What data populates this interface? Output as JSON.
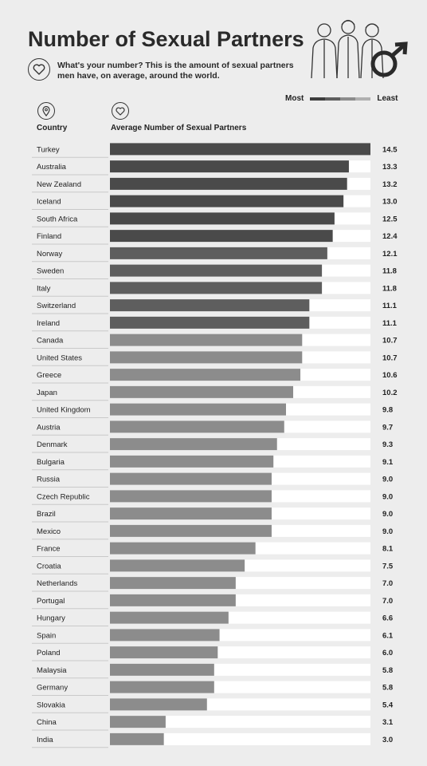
{
  "title": "Number of Sexual Partners",
  "subtitle": "What's your number? This is the amount of sexual partners men have, on average, around the world.",
  "legend": {
    "most_label": "Most",
    "least_label": "Least"
  },
  "columns": {
    "country": "Country",
    "average": "Average Number of Sexual Partners"
  },
  "icons": {
    "header": "heart-icon",
    "country": "location-pin-icon",
    "average": "heart-icon",
    "illustration": "male-symbol-icon"
  },
  "colors": {
    "background": "#ededed",
    "track": "#ffffff",
    "dark": "#4a4a4a",
    "medium": "#5e5e5e",
    "light": "#8c8c8c",
    "text": "#222222"
  },
  "chart_data": {
    "type": "bar",
    "orientation": "horizontal",
    "xlim": [
      0,
      14.5
    ],
    "categories": [
      "Turkey",
      "Australia",
      "New Zealand",
      "Iceland",
      "South Africa",
      "Finland",
      "Norway",
      "Sweden",
      "Italy",
      "Switzerland",
      "Ireland",
      "Canada",
      "United States",
      "Greece",
      "Japan",
      "United Kingdom",
      "Austria",
      "Denmark",
      "Bulgaria",
      "Russia",
      "Czech Republic",
      "Brazil",
      "Mexico",
      "France",
      "Croatia",
      "Netherlands",
      "Portugal",
      "Hungary",
      "Spain",
      "Poland",
      "Malaysia",
      "Germany",
      "Slovakia",
      "China",
      "India"
    ],
    "values": [
      14.5,
      13.3,
      13.2,
      13.0,
      12.5,
      12.4,
      12.1,
      11.8,
      11.8,
      11.1,
      11.1,
      10.7,
      10.7,
      10.6,
      10.2,
      9.8,
      9.7,
      9.3,
      9.1,
      9.0,
      9.0,
      9.0,
      9.0,
      8.1,
      7.5,
      7.0,
      7.0,
      6.6,
      6.1,
      6.0,
      5.8,
      5.8,
      5.4,
      3.1,
      3.0
    ],
    "value_labels": [
      "14.5",
      "13.3",
      "13.2",
      "13.0",
      "12.5",
      "12.4",
      "12.1",
      "11.8",
      "11.8",
      "11.1",
      "11.1",
      "10.7",
      "10.7",
      "10.6",
      "10.2",
      "9.8",
      "9.7",
      "9.3",
      "9.1",
      "9.0",
      "9.0",
      "9.0",
      "9.0",
      "8.1",
      "7.5",
      "7.0",
      "7.0",
      "6.6",
      "6.1",
      "6.0",
      "5.8",
      "5.8",
      "5.4",
      "3.1",
      "3.0"
    ],
    "shade_groups": [
      "dark",
      "dark",
      "dark",
      "dark",
      "dark",
      "dark",
      "medium",
      "medium",
      "medium",
      "medium",
      "medium",
      "light",
      "light",
      "light",
      "light",
      "light",
      "light",
      "light",
      "light",
      "light",
      "light",
      "light",
      "light",
      "light",
      "light",
      "light",
      "light",
      "light",
      "light",
      "light",
      "light",
      "light",
      "light",
      "light",
      "light"
    ]
  }
}
